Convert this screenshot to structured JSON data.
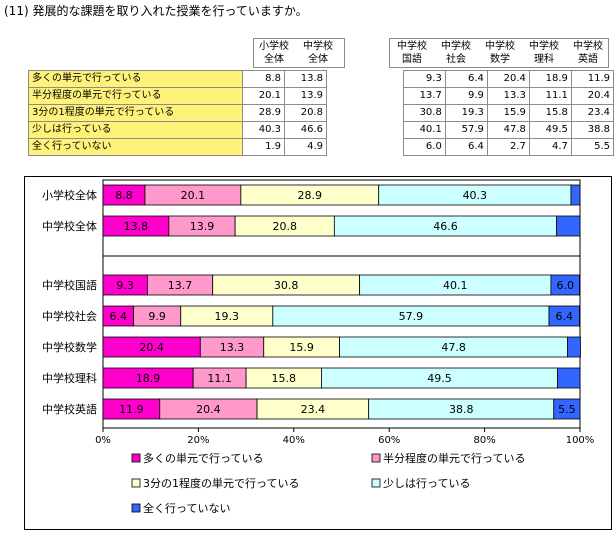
{
  "title": "(11) 発展的な課題を取り入れた授業を行っていますか。",
  "table": {
    "groups_left": [
      "小学校全体",
      "中学校全体"
    ],
    "groups_right": [
      "中学校国語",
      "中学校社会",
      "中学校数学",
      "中学校理科",
      "中学校英語"
    ],
    "header_left": [
      [
        "小学校",
        "全体"
      ],
      [
        "中学校",
        "全体"
      ]
    ],
    "header_right": [
      [
        "中学校",
        "国語"
      ],
      [
        "中学校",
        "社会"
      ],
      [
        "中学校",
        "数学"
      ],
      [
        "中学校",
        "理科"
      ],
      [
        "中学校",
        "英語"
      ]
    ],
    "rows": [
      {
        "label": "多くの単元で行っている",
        "values": [
          "8.8",
          "13.8",
          "9.3",
          "6.4",
          "20.4",
          "18.9",
          "11.9"
        ]
      },
      {
        "label": "半分程度の単元で行っている",
        "values": [
          "20.1",
          "13.9",
          "13.7",
          "9.9",
          "13.3",
          "11.1",
          "20.4"
        ]
      },
      {
        "label": "3分の1程度の単元で行っている",
        "values": [
          "28.9",
          "20.8",
          "30.8",
          "19.3",
          "15.9",
          "15.8",
          "23.4"
        ]
      },
      {
        "label": "少しは行っている",
        "values": [
          "40.3",
          "46.6",
          "40.1",
          "57.9",
          "47.8",
          "49.5",
          "38.8"
        ]
      },
      {
        "label": "全く行っていない",
        "values": [
          "1.9",
          "4.9",
          "6.0",
          "6.4",
          "2.7",
          "4.7",
          "5.5"
        ]
      }
    ]
  },
  "chart_data": {
    "type": "bar",
    "orientation": "horizontal",
    "stacked": "percent",
    "categories": [
      "小学校全体",
      "中学校全体",
      "",
      "中学校国語",
      "中学校社会",
      "中学校数学",
      "中学校理科",
      "中学校英語"
    ],
    "series": [
      {
        "name": "多くの単元で行っている",
        "color": "#ff00cc",
        "values": [
          8.8,
          13.8,
          null,
          9.3,
          6.4,
          20.4,
          18.9,
          11.9
        ]
      },
      {
        "name": "半分程度の単元で行っている",
        "color": "#ff99cc",
        "values": [
          20.1,
          13.9,
          null,
          13.7,
          9.9,
          13.3,
          11.1,
          20.4
        ]
      },
      {
        "name": "3分の1程度の単元で行っている",
        "color": "#ffffcc",
        "values": [
          28.9,
          20.8,
          null,
          30.8,
          19.3,
          15.9,
          15.8,
          23.4
        ]
      },
      {
        "name": "少しは行っている",
        "color": "#ccffff",
        "values": [
          40.3,
          46.6,
          null,
          40.1,
          57.9,
          47.8,
          49.5,
          38.8
        ]
      },
      {
        "name": "全く行っていない",
        "color": "#3366ff",
        "values": [
          1.9,
          4.9,
          null,
          6.0,
          6.4,
          2.7,
          4.7,
          5.5
        ]
      }
    ],
    "data_labels": [
      [
        "8.8",
        "20.1",
        "28.9",
        "40.3",
        ""
      ],
      [
        "13.8",
        "13.9",
        "20.8",
        "46.6",
        ""
      ],
      [],
      [
        "9.3",
        "13.7",
        "30.8",
        "40.1",
        "6.0"
      ],
      [
        "6.4",
        "9.9",
        "19.3",
        "57.9",
        "6.4"
      ],
      [
        "20.4",
        "13.3",
        "15.9",
        "47.8",
        ""
      ],
      [
        "18.9",
        "11.1",
        "15.8",
        "49.5",
        ""
      ],
      [
        "11.9",
        "20.4",
        "23.4",
        "38.8",
        "5.5"
      ]
    ],
    "xlim": [
      0,
      100
    ],
    "xticks": [
      "0%",
      "20%",
      "40%",
      "60%",
      "80%",
      "100%"
    ],
    "legend": "bottom"
  }
}
